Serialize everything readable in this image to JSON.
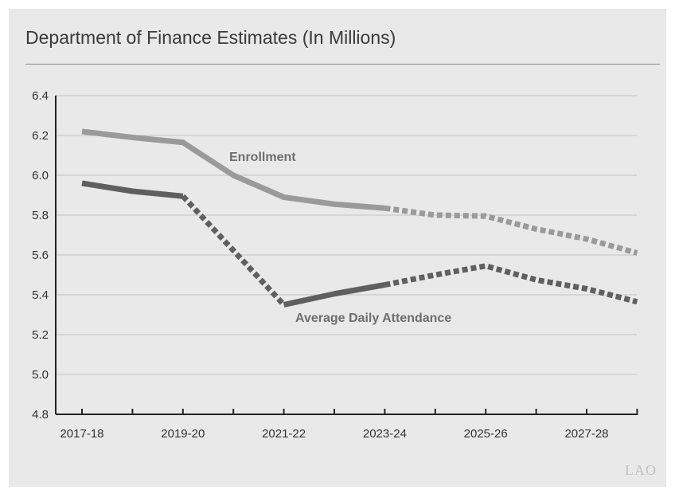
{
  "chart_data": {
    "type": "line",
    "title": "Department of Finance Estimates (In Millions)",
    "xlabel": "",
    "ylabel": "",
    "x": [
      "2017-18",
      "2018-19",
      "2019-20",
      "2020-21",
      "2021-22",
      "2022-23",
      "2023-24",
      "2024-25",
      "2025-26",
      "2026-27",
      "2027-28",
      "2028-29"
    ],
    "x_tick_labels": [
      "2017-18",
      "2019-20",
      "2021-22",
      "2023-24",
      "2025-26",
      "2027-28"
    ],
    "ylim": [
      4.8,
      6.4
    ],
    "y_ticks": [
      "4.8",
      "5.0",
      "5.2",
      "5.4",
      "5.6",
      "5.8",
      "6.0",
      "6.2",
      "6.4"
    ],
    "grid": true,
    "series": [
      {
        "name": "Enrollment",
        "color": "#9a9a9a",
        "values": [
          6.22,
          6.19,
          6.165,
          6.0,
          5.89,
          5.855,
          5.835,
          5.8,
          5.795,
          5.73,
          5.68,
          5.61
        ],
        "solid_until_index": 6
      },
      {
        "name": "Average Daily Attendance",
        "color": "#5f5f5f",
        "values": [
          5.96,
          5.92,
          5.895,
          null,
          5.35,
          5.405,
          5.45,
          5.5,
          5.545,
          5.475,
          5.43,
          5.365
        ],
        "dashed_segments": [
          [
            2,
            4
          ],
          [
            6,
            11
          ]
        ],
        "solid_segments": [
          [
            0,
            2
          ],
          [
            4,
            6
          ]
        ]
      }
    ]
  },
  "watermark": "LAO"
}
